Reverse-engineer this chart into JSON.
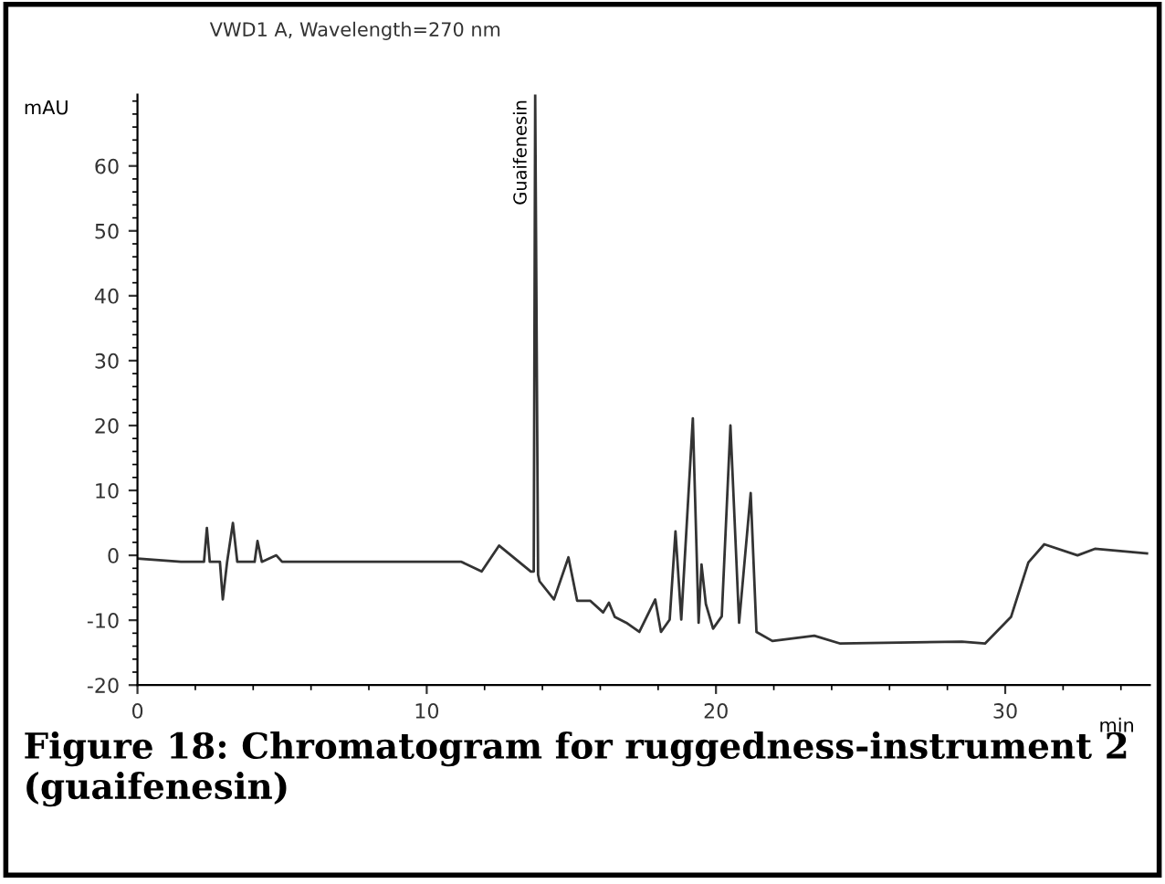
{
  "chart_data": {
    "type": "line",
    "title": "VWD1 A, Wavelength=270 nm",
    "xlabel": "min",
    "ylabel": "mAU",
    "x": [
      0,
      1.5,
      2.3,
      2.4,
      2.5,
      2.85,
      2.95,
      3.1,
      3.3,
      3.45,
      4.05,
      4.15,
      4.3,
      4.8,
      5.0,
      11.2,
      11.9,
      12.5,
      13.6,
      13.7,
      13.75,
      13.85,
      13.9,
      14.4,
      14.9,
      15.2,
      15.65,
      16.1,
      16.3,
      16.5,
      16.9,
      17.35,
      17.9,
      18.1,
      18.4,
      18.6,
      18.8,
      19.2,
      19.4,
      19.5,
      19.65,
      19.9,
      20.2,
      20.5,
      20.8,
      21.2,
      21.4,
      21.95,
      23.4,
      24.3,
      28.5,
      29.3,
      30.2,
      30.8,
      31.35,
      32.5,
      33.1,
      34.9
    ],
    "series": [
      {
        "color": "#333333",
        "values": [
          -0.5,
          -1,
          -1,
          4.2,
          -1,
          -1,
          -6.8,
          -1,
          5,
          -1,
          -1,
          2.2,
          -1,
          0,
          -1,
          -1,
          -2.5,
          1.5,
          -2.5,
          -2.5,
          71,
          -3,
          -4,
          -6.8,
          -0.3,
          -7,
          -7,
          -8.8,
          -7.3,
          -9.5,
          -10.4,
          -11.8,
          -6.8,
          -11.8,
          -9.9,
          3.7,
          -9.9,
          21.1,
          -10.4,
          -1.4,
          -7.5,
          -11.3,
          -9.4,
          20,
          -10.4,
          9.6,
          -11.8,
          -13.2,
          -12.4,
          -13.6,
          -13.3,
          -13.6,
          -9.5,
          -1.1,
          1.7,
          0,
          1,
          0.3
        ]
      }
    ],
    "xlim": [
      0,
      35
    ],
    "ylim": [
      -20,
      71
    ],
    "xticks": [
      0,
      10,
      20,
      30
    ],
    "yticks": [
      -20,
      -10,
      0,
      10,
      20,
      30,
      40,
      50,
      60
    ],
    "grid": false,
    "legend": false,
    "marker": "none",
    "line_style": "solid",
    "annotations": [
      {
        "text": "Guaifenesin",
        "x": 13.75,
        "y": 71
      },
      "Figure 18: Chromatogram for ruggedness-instrument 2 (guaifenesin)"
    ]
  }
}
